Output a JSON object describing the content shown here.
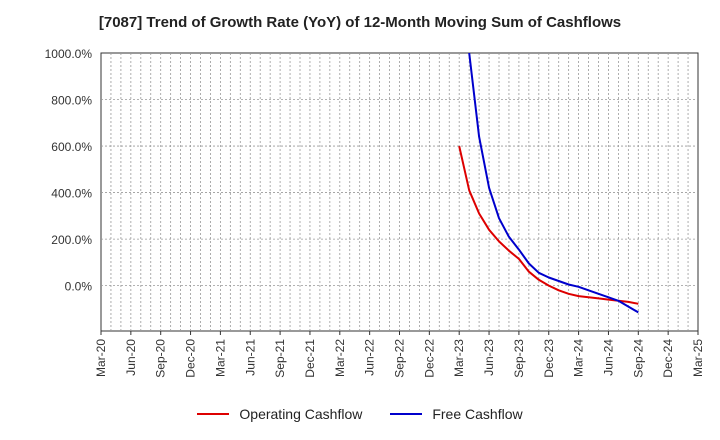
{
  "chart_data": {
    "type": "line",
    "title": "[7087]  Trend of Growth Rate (YoY) of 12-Month Moving Sum of Cashflows",
    "xlabel": "",
    "ylabel": "",
    "x_ticks": [
      "Mar-20",
      "Jun-20",
      "Sep-20",
      "Dec-20",
      "Mar-21",
      "Jun-21",
      "Sep-21",
      "Dec-21",
      "Mar-22",
      "Jun-22",
      "Sep-22",
      "Dec-22",
      "Mar-23",
      "Jun-23",
      "Sep-23",
      "Dec-23",
      "Mar-24",
      "Jun-24",
      "Sep-24",
      "Dec-24",
      "Mar-25"
    ],
    "y_ticks": [
      0,
      200,
      400,
      600,
      800,
      1000
    ],
    "y_tick_labels": [
      "0.0%",
      "200.0%",
      "400.0%",
      "600.0%",
      "800.0%",
      "1000.0%"
    ],
    "xlim": [
      "2020-03",
      "2025-03"
    ],
    "ylim": [
      -195,
      1000
    ],
    "grid": true,
    "legend_position": "bottom-center",
    "series": [
      {
        "name": "Operating Cashflow",
        "color": "#dd0000",
        "points": [
          [
            "2023-03",
            600
          ],
          [
            "2023-04",
            410
          ],
          [
            "2023-05",
            310
          ],
          [
            "2023-06",
            240
          ],
          [
            "2023-07",
            190
          ],
          [
            "2023-08",
            150
          ],
          [
            "2023-09",
            115
          ],
          [
            "2023-10",
            60
          ],
          [
            "2023-11",
            25
          ],
          [
            "2023-12",
            0
          ],
          [
            "2024-01",
            -20
          ],
          [
            "2024-02",
            -35
          ],
          [
            "2024-03",
            -45
          ],
          [
            "2024-04",
            -50
          ],
          [
            "2024-05",
            -55
          ],
          [
            "2024-06",
            -60
          ],
          [
            "2024-07",
            -65
          ],
          [
            "2024-08",
            -70
          ],
          [
            "2024-09",
            -78
          ]
        ]
      },
      {
        "name": "Free Cashflow",
        "color": "#0000cc",
        "points": [
          [
            "2023-04",
            1000
          ],
          [
            "2023-05",
            640
          ],
          [
            "2023-06",
            420
          ],
          [
            "2023-07",
            290
          ],
          [
            "2023-08",
            210
          ],
          [
            "2023-09",
            155
          ],
          [
            "2023-10",
            95
          ],
          [
            "2023-11",
            55
          ],
          [
            "2023-12",
            35
          ],
          [
            "2024-01",
            20
          ],
          [
            "2024-02",
            5
          ],
          [
            "2024-03",
            -5
          ],
          [
            "2024-04",
            -20
          ],
          [
            "2024-05",
            -35
          ],
          [
            "2024-06",
            -50
          ],
          [
            "2024-07",
            -65
          ],
          [
            "2024-08",
            -90
          ],
          [
            "2024-09",
            -115
          ]
        ]
      }
    ]
  }
}
